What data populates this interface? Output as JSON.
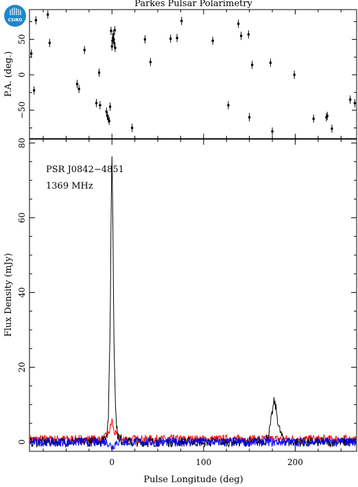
{
  "title": "Parkes Pulsar Polarimetry",
  "logo_text": "CSIRO",
  "colors": {
    "total_intensity": "#000000",
    "linear_polarization": "#ff0000",
    "circular_polarization": "#0000ff",
    "logo": "#1e88c8"
  },
  "chart_data": [
    {
      "panel": "position-angle",
      "type": "scatter",
      "ylabel": "P.A. (deg.)",
      "xlabel": "",
      "xlim": [
        -90,
        267
      ],
      "ylim": [
        -90,
        92
      ],
      "yticks": [
        -50,
        0,
        50
      ],
      "error_bars": true,
      "points": [
        [
          -88,
          30
        ],
        [
          -85,
          -22
        ],
        [
          -83,
          77
        ],
        [
          -70,
          85
        ],
        [
          -68,
          45
        ],
        [
          -38,
          -13
        ],
        [
          -36,
          -20
        ],
        [
          -30,
          35
        ],
        [
          -17,
          -40
        ],
        [
          -14,
          3
        ],
        [
          -13,
          -43
        ],
        [
          -6,
          -52
        ],
        [
          -5,
          -58
        ],
        [
          -4,
          -62
        ],
        [
          -3,
          -65
        ],
        [
          -2,
          -45
        ],
        [
          -1,
          62
        ],
        [
          0,
          40
        ],
        [
          0.5,
          48
        ],
        [
          1,
          52
        ],
        [
          1.5,
          57
        ],
        [
          2,
          50
        ],
        [
          2.5,
          45
        ],
        [
          3,
          63
        ],
        [
          3.5,
          38
        ],
        [
          22,
          -75
        ],
        [
          36,
          50
        ],
        [
          42,
          18
        ],
        [
          64,
          51
        ],
        [
          71,
          52
        ],
        [
          76,
          76
        ],
        [
          110,
          48
        ],
        [
          127,
          -43
        ],
        [
          138,
          72
        ],
        [
          141,
          55
        ],
        [
          149,
          57
        ],
        [
          150,
          -60
        ],
        [
          153,
          14
        ],
        [
          173,
          17
        ],
        [
          175,
          -80
        ],
        [
          199,
          0
        ],
        [
          220,
          -62
        ],
        [
          234,
          -60
        ],
        [
          235,
          -58
        ],
        [
          240,
          -76
        ],
        [
          260,
          -35
        ],
        [
          265,
          -40
        ]
      ]
    },
    {
      "panel": "flux-profile",
      "type": "line",
      "xlabel": "Pulse Longitude (deg)",
      "ylabel": "Flux Density (mJy)",
      "xlim": [
        -90,
        267
      ],
      "ylim": [
        -2.5,
        81
      ],
      "xticks": [
        0,
        100,
        200
      ],
      "yticks": [
        0,
        20,
        40,
        60,
        80
      ],
      "annotations": [
        "PSR J0842−4851",
        "1369 MHz"
      ],
      "series": [
        {
          "key": "total_intensity",
          "x": [
            -90,
            -20,
            -10,
            -6,
            -4,
            -2,
            -1,
            0,
            1,
            2,
            4,
            6,
            10,
            20,
            160,
            168,
            172,
            175,
            177,
            179,
            182,
            186,
            192,
            267
          ],
          "y": [
            0,
            0,
            0.5,
            2,
            6,
            30,
            60,
            77,
            60,
            30,
            8,
            2,
            0.5,
            0,
            0,
            0.5,
            3,
            8,
            11,
            9,
            4,
            1,
            0,
            0
          ]
        },
        {
          "key": "linear_polarization",
          "x": [
            -90,
            -10,
            -4,
            -1,
            0,
            1,
            2,
            4,
            8,
            15,
            267
          ],
          "y": [
            0.8,
            0.8,
            2,
            4.5,
            6,
            4.5,
            3,
            2,
            1.2,
            0.8,
            0.8
          ]
        },
        {
          "key": "circular_polarization",
          "x": [
            -90,
            -5,
            -2,
            0,
            2,
            5,
            267
          ],
          "y": [
            0,
            0,
            -0.8,
            -1.5,
            -0.8,
            0,
            0
          ]
        }
      ]
    }
  ]
}
